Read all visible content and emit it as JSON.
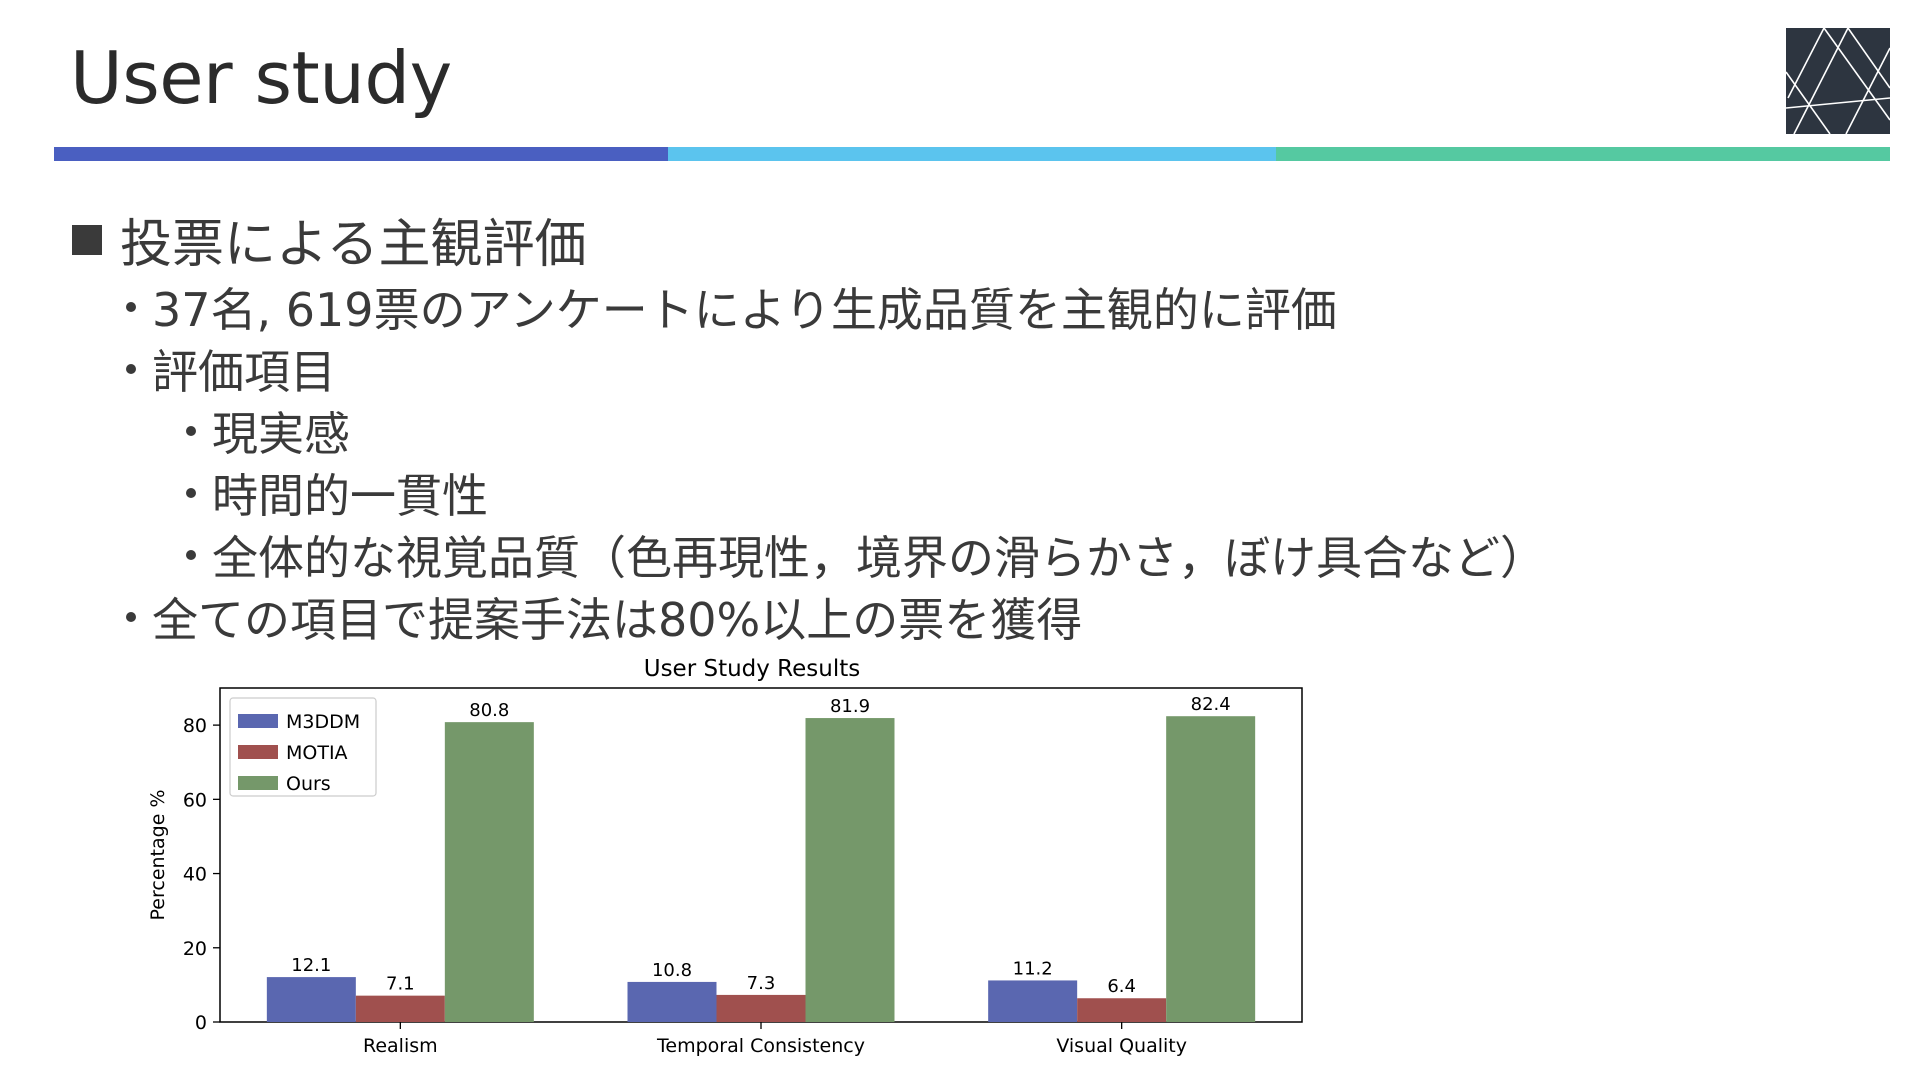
{
  "slide": {
    "title": "User study",
    "heading": "投票による主観評価",
    "bullets": [
      "37名, 619票のアンケートにより生成品質を主観的に評価",
      "評価項目"
    ],
    "sub_bullets": [
      "現実感",
      "時間的一貫性",
      "全体的な視覚品質（色再現性，境界の滑らかさ，ぼけ具合など）"
    ],
    "conclusion": "全ての項目で提案手法は80%以上の票を獲得"
  },
  "colors": {
    "stripe_blue": "#4a5fc1",
    "stripe_cyan": "#5bc4ee",
    "stripe_green": "#55c9a1",
    "logo_bg": "#2d3540",
    "m3ddm": "#5a67b0",
    "motia": "#a0504e",
    "ours": "#75986a"
  },
  "chart_data": {
    "type": "bar",
    "title": "User Study Results",
    "xlabel": "",
    "ylabel": "Percentage %",
    "ylim": [
      0,
      90
    ],
    "yticks": [
      0,
      20,
      40,
      60,
      80
    ],
    "categories": [
      "Realism",
      "Temporal Consistency",
      "Visual Quality"
    ],
    "series": [
      {
        "name": "M3DDM",
        "values": [
          12.1,
          10.8,
          11.2
        ],
        "color": "#5a67b0"
      },
      {
        "name": "MOTIA",
        "values": [
          7.1,
          7.3,
          6.4
        ],
        "color": "#a0504e"
      },
      {
        "name": "Ours",
        "values": [
          80.8,
          81.9,
          82.4
        ],
        "color": "#75986a"
      }
    ],
    "data_labels": true,
    "legend": "top-left",
    "grid": false
  }
}
